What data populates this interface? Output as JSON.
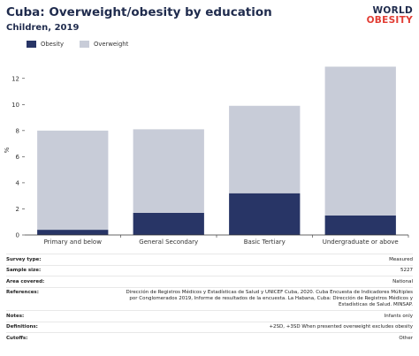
{
  "header": {
    "title": "Cuba: Overweight/obesity by education",
    "subtitle": "Children, 2019"
  },
  "logo": {
    "line1": "WORLD",
    "line2": "OBESITY"
  },
  "colors": {
    "obesity": "#283566",
    "overweight": "#c8ccd8",
    "axis": "#333333",
    "text": "#1f2b4d"
  },
  "chart_data": {
    "type": "bar",
    "stacked": true,
    "categories": [
      "Primary and below",
      "General Secondary",
      "Basic Tertiary",
      "Undergraduate or above"
    ],
    "series": [
      {
        "name": "Obesity",
        "values": [
          0.4,
          1.7,
          3.2,
          1.5
        ]
      },
      {
        "name": "Overweight",
        "values": [
          7.6,
          6.4,
          6.7,
          11.4
        ]
      }
    ],
    "totals": [
      8.0,
      8.1,
      9.9,
      12.9
    ],
    "ylabel": "%",
    "ylim": [
      0,
      13
    ],
    "yticks": [
      0,
      2,
      4,
      6,
      8,
      10,
      12
    ],
    "grid": false,
    "legend": "top-left"
  },
  "meta": {
    "survey_type": {
      "label": "Survey type:",
      "value": "Measured"
    },
    "sample_size": {
      "label": "Sample size:",
      "value": "5227"
    },
    "area_covered": {
      "label": "Area covered:",
      "value": "National"
    },
    "references": {
      "label": "References:",
      "value": "Dirección de Registros Médicos y Estadísticas de Salud y UNICEF Cuba, 2020. Cuba Encuesta de Indicadores Múltiples por Conglomerados 2019, Informe de resultados de la encuesta. La Habana, Cuba: Dirección de Registros Médicos y Estadísticas de Salud. MINSAP."
    },
    "notes": {
      "label": "Notes:",
      "value": "Infants only"
    },
    "definitions": {
      "label": "Definitions:",
      "value": "+2SD, +3SD When presented overweight excludes obesity"
    },
    "cutoffs": {
      "label": "Cutoffs:",
      "value": "Other"
    }
  }
}
